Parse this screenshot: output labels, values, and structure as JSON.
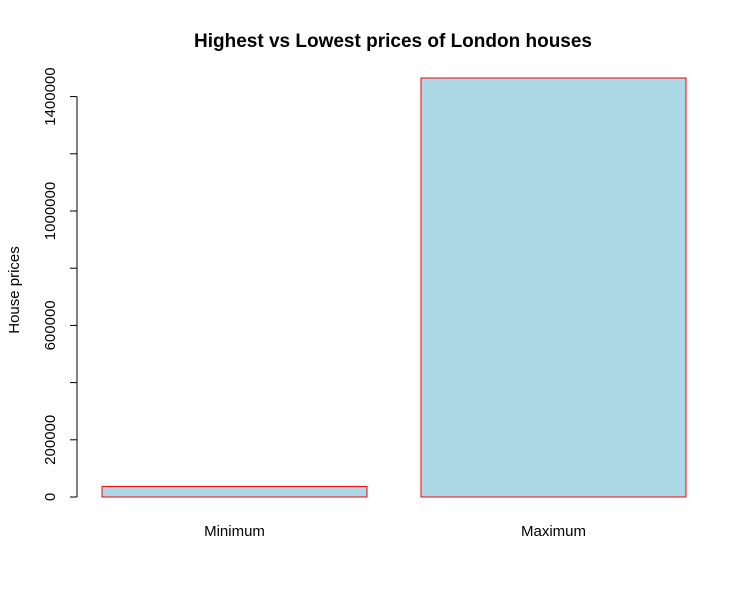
{
  "chart_data": {
    "type": "bar",
    "title": "Highest vs Lowest prices of London houses",
    "xlabel": "",
    "ylabel": "House prices",
    "categories": [
      "Minimum",
      "Maximum"
    ],
    "values": [
      37000,
      1465000
    ],
    "ylim": [
      0,
      1465000
    ],
    "yticks": [
      0,
      200000,
      600000,
      1000000,
      1400000
    ],
    "yminor_ticks": [
      400000,
      800000,
      1200000
    ],
    "grid": false,
    "legend": "none",
    "bar_fill": "#add8e6",
    "bar_border": "#ff0000"
  }
}
